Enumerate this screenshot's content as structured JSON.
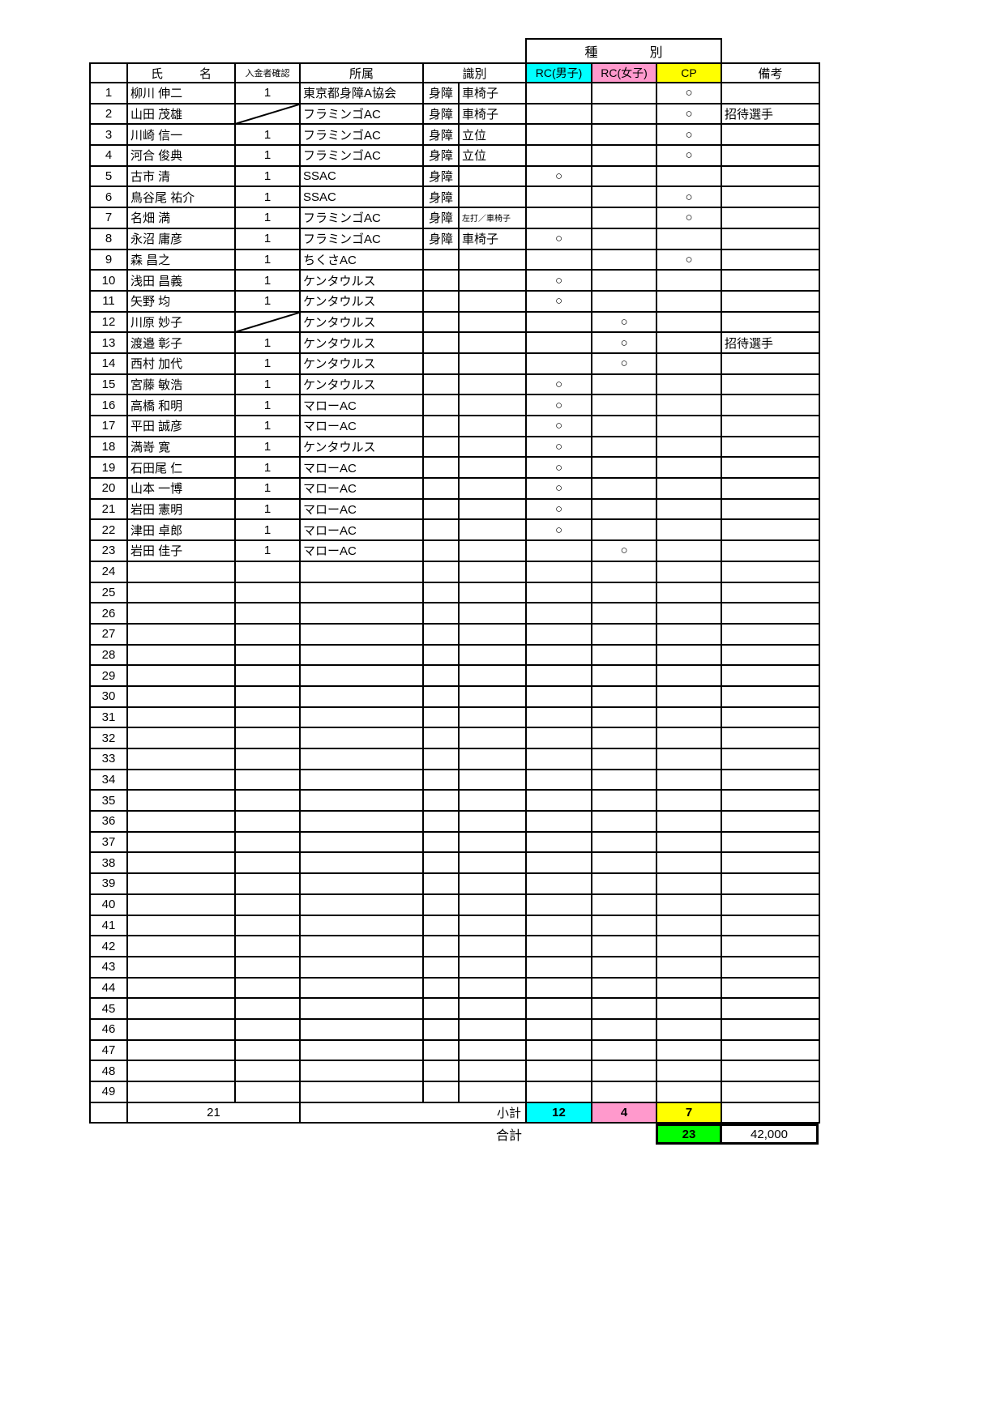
{
  "colors": {
    "rc_male": "#00FFFF",
    "rc_female": "#FF99CC",
    "cp": "#FFFF00",
    "total": "#00FF00"
  },
  "header": {
    "name": "氏　　　名",
    "payment": "入金者確認",
    "affiliation": "所属",
    "ident": "識別",
    "category": "種　　　　別",
    "rc_male": "RC(男子)",
    "rc_female": "RC(女子)",
    "cp": "CP",
    "remarks": "備考"
  },
  "circle": "○",
  "rows": [
    {
      "num": "1",
      "name": "柳川 伸二",
      "payment": "1",
      "affiliation": "東京都身障A協会",
      "ident1": "身障",
      "ident2": "車椅子",
      "rc_male": "",
      "rc_female": "",
      "cp": "○",
      "remarks": ""
    },
    {
      "num": "2",
      "name": "山田 茂雄",
      "payment": "",
      "slash": true,
      "affiliation": "フラミンゴAC",
      "ident1": "身障",
      "ident2": "車椅子",
      "rc_male": "",
      "rc_female": "",
      "cp": "○",
      "remarks": "招待選手"
    },
    {
      "num": "3",
      "name": "川崎 信一",
      "payment": "1",
      "affiliation": "フラミンゴAC",
      "ident1": "身障",
      "ident2": "立位",
      "rc_male": "",
      "rc_female": "",
      "cp": "○",
      "remarks": ""
    },
    {
      "num": "4",
      "name": "河合 俊典",
      "payment": "1",
      "affiliation": "フラミンゴAC",
      "ident1": "身障",
      "ident2": "立位",
      "rc_male": "",
      "rc_female": "",
      "cp": "○",
      "remarks": ""
    },
    {
      "num": "5",
      "name": "古市 清",
      "payment": "1",
      "affiliation": "SSAC",
      "ident1": "身障",
      "ident2": "",
      "rc_male": "○",
      "rc_female": "",
      "cp": "",
      "remarks": ""
    },
    {
      "num": "6",
      "name": "鳥谷尾 祐介",
      "payment": "1",
      "affiliation": "SSAC",
      "ident1": "身障",
      "ident2": "",
      "rc_male": "",
      "rc_female": "",
      "cp": "○",
      "remarks": ""
    },
    {
      "num": "7",
      "name": "名畑 満",
      "payment": "1",
      "affiliation": "フラミンゴAC",
      "ident1": "身障",
      "ident2": "左打／車椅子",
      "ident2_small": true,
      "rc_male": "",
      "rc_female": "",
      "cp": "○",
      "remarks": ""
    },
    {
      "num": "8",
      "name": "永沼 庸彦",
      "payment": "1",
      "affiliation": "フラミンゴAC",
      "ident1": "身障",
      "ident2": "車椅子",
      "rc_male": "○",
      "rc_female": "",
      "cp": "",
      "remarks": ""
    },
    {
      "num": "9",
      "name": "森 昌之",
      "payment": "1",
      "affiliation": "ちくさAC",
      "ident1": "",
      "ident2": "",
      "rc_male": "",
      "rc_female": "",
      "cp": "○",
      "remarks": ""
    },
    {
      "num": "10",
      "name": "浅田 昌義",
      "payment": "1",
      "affiliation": "ケンタウルス",
      "ident1": "",
      "ident2": "",
      "rc_male": "○",
      "rc_female": "",
      "cp": "",
      "remarks": ""
    },
    {
      "num": "11",
      "name": "矢野 均",
      "payment": "1",
      "affiliation": "ケンタウルス",
      "ident1": "",
      "ident2": "",
      "rc_male": "○",
      "rc_female": "",
      "cp": "",
      "remarks": ""
    },
    {
      "num": "12",
      "name": "川原 妙子",
      "payment": "",
      "slash": true,
      "affiliation": "ケンタウルス",
      "ident1": "",
      "ident2": "",
      "rc_male": "",
      "rc_female": "○",
      "cp": "",
      "remarks": ""
    },
    {
      "num": "13",
      "name": "渡邉 彰子",
      "payment": "1",
      "affiliation": "ケンタウルス",
      "ident1": "",
      "ident2": "",
      "rc_male": "",
      "rc_female": "○",
      "cp": "",
      "remarks": "招待選手"
    },
    {
      "num": "14",
      "name": "西村 加代",
      "payment": "1",
      "affiliation": "ケンタウルス",
      "ident1": "",
      "ident2": "",
      "rc_male": "",
      "rc_female": "○",
      "cp": "",
      "remarks": ""
    },
    {
      "num": "15",
      "name": "宮藤 敏浩",
      "payment": "1",
      "affiliation": "ケンタウルス",
      "ident1": "",
      "ident2": "",
      "rc_male": "○",
      "rc_female": "",
      "cp": "",
      "remarks": ""
    },
    {
      "num": "16",
      "name": "高橋 和明",
      "payment": "1",
      "affiliation": "マローAC",
      "ident1": "",
      "ident2": "",
      "rc_male": "○",
      "rc_female": "",
      "cp": "",
      "remarks": ""
    },
    {
      "num": "17",
      "name": "平田 誠彦",
      "payment": "1",
      "affiliation": "マローAC",
      "ident1": "",
      "ident2": "",
      "rc_male": "○",
      "rc_female": "",
      "cp": "",
      "remarks": ""
    },
    {
      "num": "18",
      "name": "満嵜 寛",
      "payment": "1",
      "affiliation": "ケンタウルス",
      "ident1": "",
      "ident2": "",
      "rc_male": "○",
      "rc_female": "",
      "cp": "",
      "remarks": ""
    },
    {
      "num": "19",
      "name": "石田尾 仁",
      "payment": "1",
      "affiliation": "マローAC",
      "ident1": "",
      "ident2": "",
      "rc_male": "○",
      "rc_female": "",
      "cp": "",
      "remarks": ""
    },
    {
      "num": "20",
      "name": "山本 一博",
      "payment": "1",
      "affiliation": "マローAC",
      "ident1": "",
      "ident2": "",
      "rc_male": "○",
      "rc_female": "",
      "cp": "",
      "remarks": ""
    },
    {
      "num": "21",
      "name": "岩田 憲明",
      "payment": "1",
      "affiliation": "マローAC",
      "ident1": "",
      "ident2": "",
      "rc_male": "○",
      "rc_female": "",
      "cp": "",
      "remarks": ""
    },
    {
      "num": "22",
      "name": "津田 卓郎",
      "payment": "1",
      "affiliation": "マローAC",
      "ident1": "",
      "ident2": "",
      "rc_male": "○",
      "rc_female": "",
      "cp": "",
      "remarks": ""
    },
    {
      "num": "23",
      "name": "岩田 佳子",
      "payment": "1",
      "affiliation": "マローAC",
      "ident1": "",
      "ident2": "",
      "rc_male": "",
      "rc_female": "○",
      "cp": "",
      "remarks": ""
    },
    {
      "num": "24"
    },
    {
      "num": "25"
    },
    {
      "num": "26"
    },
    {
      "num": "27"
    },
    {
      "num": "28"
    },
    {
      "num": "29"
    },
    {
      "num": "30"
    },
    {
      "num": "31"
    },
    {
      "num": "32"
    },
    {
      "num": "33"
    },
    {
      "num": "34"
    },
    {
      "num": "35"
    },
    {
      "num": "36"
    },
    {
      "num": "37"
    },
    {
      "num": "38"
    },
    {
      "num": "39"
    },
    {
      "num": "40"
    },
    {
      "num": "41"
    },
    {
      "num": "42"
    },
    {
      "num": "43"
    },
    {
      "num": "44"
    },
    {
      "num": "45"
    },
    {
      "num": "46"
    },
    {
      "num": "47"
    },
    {
      "num": "48"
    },
    {
      "num": "49"
    }
  ],
  "subtotal": {
    "payment_count": "21",
    "label": "小計",
    "rc_male": "12",
    "rc_female": "4",
    "cp": "7"
  },
  "total": {
    "label": "合計",
    "count": "23",
    "amount": "42,000"
  }
}
